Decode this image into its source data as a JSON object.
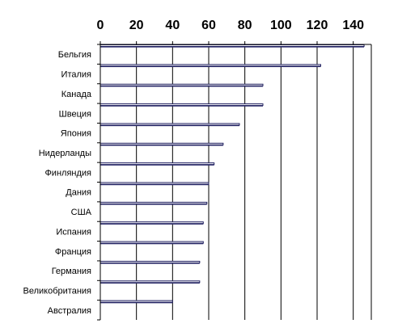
{
  "chart_data": {
    "type": "bar",
    "orientation": "horizontal",
    "title": "",
    "xlabel": "",
    "ylabel": "",
    "xlim": [
      0,
      150
    ],
    "x_ticks": [
      0,
      20,
      40,
      60,
      80,
      100,
      120,
      140
    ],
    "x_axis_position": "top",
    "grid": true,
    "legend": "none",
    "categories": [
      "Бельгия",
      "Италия",
      "Канада",
      "Швеция",
      "Япония",
      "Нидерланды",
      "Финляндия",
      "Дания",
      "США",
      "Испания",
      "Франция",
      "Германия",
      "Великобритания",
      "Австралия"
    ],
    "values": [
      146,
      122,
      90,
      90,
      77,
      68,
      63,
      60,
      59,
      57,
      57,
      55,
      55,
      40
    ],
    "bar_fill": "#ffffff",
    "bar_edge": "#1f1f5f",
    "bar_shadow": "#2b2b6b"
  }
}
